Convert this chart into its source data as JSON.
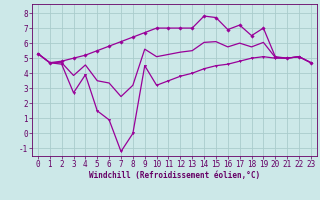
{
  "xlabel": "Windchill (Refroidissement éolien,°C)",
  "background_color": "#cce8e8",
  "grid_color": "#aacccc",
  "line_color": "#990099",
  "x_values": [
    0,
    1,
    2,
    3,
    4,
    5,
    6,
    7,
    8,
    9,
    10,
    11,
    12,
    13,
    14,
    15,
    16,
    17,
    18,
    19,
    20,
    21,
    22,
    23
  ],
  "upper_y": [
    5.3,
    4.7,
    4.8,
    5.0,
    5.2,
    5.5,
    5.8,
    6.1,
    6.4,
    6.7,
    7.0,
    7.0,
    7.0,
    7.0,
    7.8,
    7.7,
    6.9,
    7.2,
    6.5,
    7.0,
    5.1,
    5.0,
    5.1,
    4.7
  ],
  "lower_y": [
    5.3,
    4.7,
    4.6,
    2.7,
    3.9,
    1.5,
    0.9,
    -1.2,
    0.0,
    4.5,
    3.2,
    3.5,
    3.8,
    4.0,
    4.3,
    4.5,
    4.6,
    4.8,
    5.0,
    5.1,
    5.0,
    5.0,
    5.1,
    4.7
  ],
  "mid_y": [
    5.3,
    4.7,
    4.7,
    3.85,
    4.55,
    3.5,
    3.35,
    2.45,
    3.2,
    5.6,
    5.1,
    5.25,
    5.4,
    5.5,
    6.05,
    6.1,
    5.75,
    6.0,
    5.75,
    6.05,
    5.05,
    5.0,
    5.1,
    4.7
  ],
  "ylim": [
    -1.5,
    8.6
  ],
  "xlim": [
    -0.5,
    23.5
  ],
  "yticks": [
    -1,
    0,
    1,
    2,
    3,
    4,
    5,
    6,
    7,
    8
  ],
  "xticks": [
    0,
    1,
    2,
    3,
    4,
    5,
    6,
    7,
    8,
    9,
    10,
    11,
    12,
    13,
    14,
    15,
    16,
    17,
    18,
    19,
    20,
    21,
    22,
    23
  ],
  "tick_color": "#660066",
  "spine_color": "#660066",
  "label_fontsize": 5.5,
  "tick_fontsize": 5.5
}
